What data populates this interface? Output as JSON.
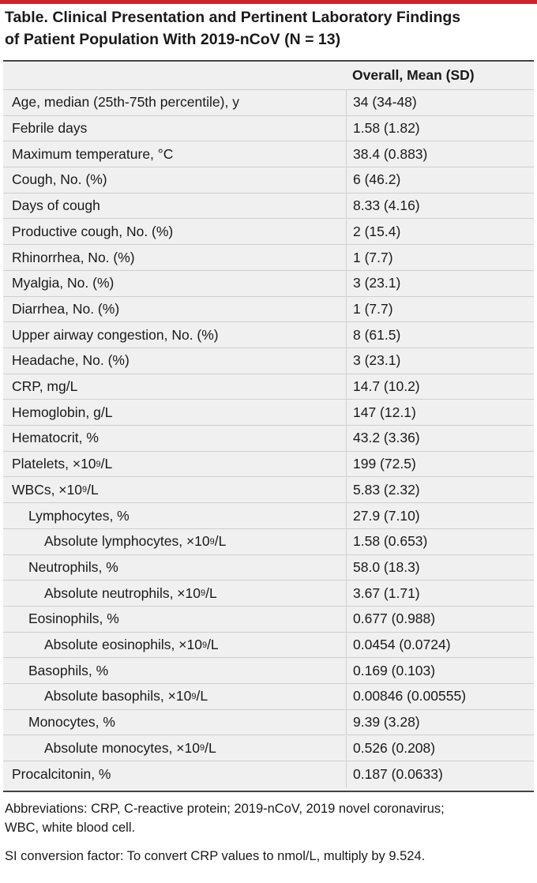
{
  "title_line1": "Table. Clinical Presentation and Pertinent Laboratory Findings",
  "title_line2": "of Patient Population With 2019-nCoV (N = 13)",
  "column_header": "Overall, Mean (SD)",
  "rows": [
    {
      "label": "Age, median (25th-75th percentile), y",
      "value": "34 (34-48)"
    },
    {
      "label": "Febrile days",
      "value": "1.58 (1.82)"
    },
    {
      "label": "Maximum temperature, °C",
      "value": "38.4 (0.883)"
    },
    {
      "label": "Cough, No. (%)",
      "value": "6 (46.2)"
    },
    {
      "label": "Days of cough",
      "value": "8.33 (4.16)"
    },
    {
      "label": "Productive cough, No. (%)",
      "value": "2 (15.4)"
    },
    {
      "label": "Rhinorrhea, No. (%)",
      "value": "1 (7.7)"
    },
    {
      "label": "Myalgia, No. (%)",
      "value": "3 (23.1)"
    },
    {
      "label": "Diarrhea, No. (%)",
      "value": "1 (7.7)"
    },
    {
      "label": "Upper airway congestion, No. (%)",
      "value": "8 (61.5)"
    },
    {
      "label": "Headache, No. (%)",
      "value": "3 (23.1)"
    },
    {
      "label": "CRP, mg/L",
      "value": "14.7 (10.2)"
    },
    {
      "label": "Hemoglobin, g/L",
      "value": "147 (12.1)"
    },
    {
      "label": "Hematocrit, %",
      "value": "43.2 (3.36)"
    },
    {
      "label": "Platelets, ×10",
      "sup": "9",
      "suffix": "/L",
      "value": "199 (72.5)"
    },
    {
      "label": "WBCs, ×10",
      "sup": "9",
      "suffix": "/L",
      "value": "5.83 (2.32)"
    },
    {
      "label": "Lymphocytes, %",
      "value": "27.9 (7.10)"
    },
    {
      "label": "Absolute lymphocytes, ×10",
      "sup": "9",
      "suffix": "/L",
      "value": "1.58 (0.653)"
    },
    {
      "label": "Neutrophils, %",
      "value": "58.0 (18.3)"
    },
    {
      "label": "Absolute neutrophils, ×10",
      "sup": "9",
      "suffix": "/L",
      "value": "3.67 (1.71)"
    },
    {
      "label": "Eosinophils, %",
      "value": "0.677 (0.988)"
    },
    {
      "label": "Absolute eosinophils, ×10",
      "sup": "9",
      "suffix": "/L",
      "value": "0.0454 (0.0724)"
    },
    {
      "label": "Basophils, %",
      "value": "0.169 (0.103)"
    },
    {
      "label": "Absolute basophils, ×10",
      "sup": "9",
      "suffix": "/L",
      "value": "0.00846 (0.00555)"
    },
    {
      "label": "Monocytes, %",
      "value": "9.39 (3.28)"
    },
    {
      "label": "Absolute monocytes, ×10",
      "sup": "9",
      "suffix": "/L",
      "value": "0.526 (0.208)"
    },
    {
      "label": "Procalcitonin, %",
      "value": "0.187 (0.0633)"
    }
  ],
  "footnote_abbrev_line1": "Abbreviations: CRP, C-reactive protein; 2019-nCoV, 2019 novel coronavirus;",
  "footnote_abbrev_line2": "WBC, white blood cell.",
  "footnote_si": "SI conversion factor: To convert CRP values to nmol/L, multiply by 9.524.",
  "colors": {
    "accent": "#d1232a",
    "table_bg": "#f0f0f0"
  }
}
